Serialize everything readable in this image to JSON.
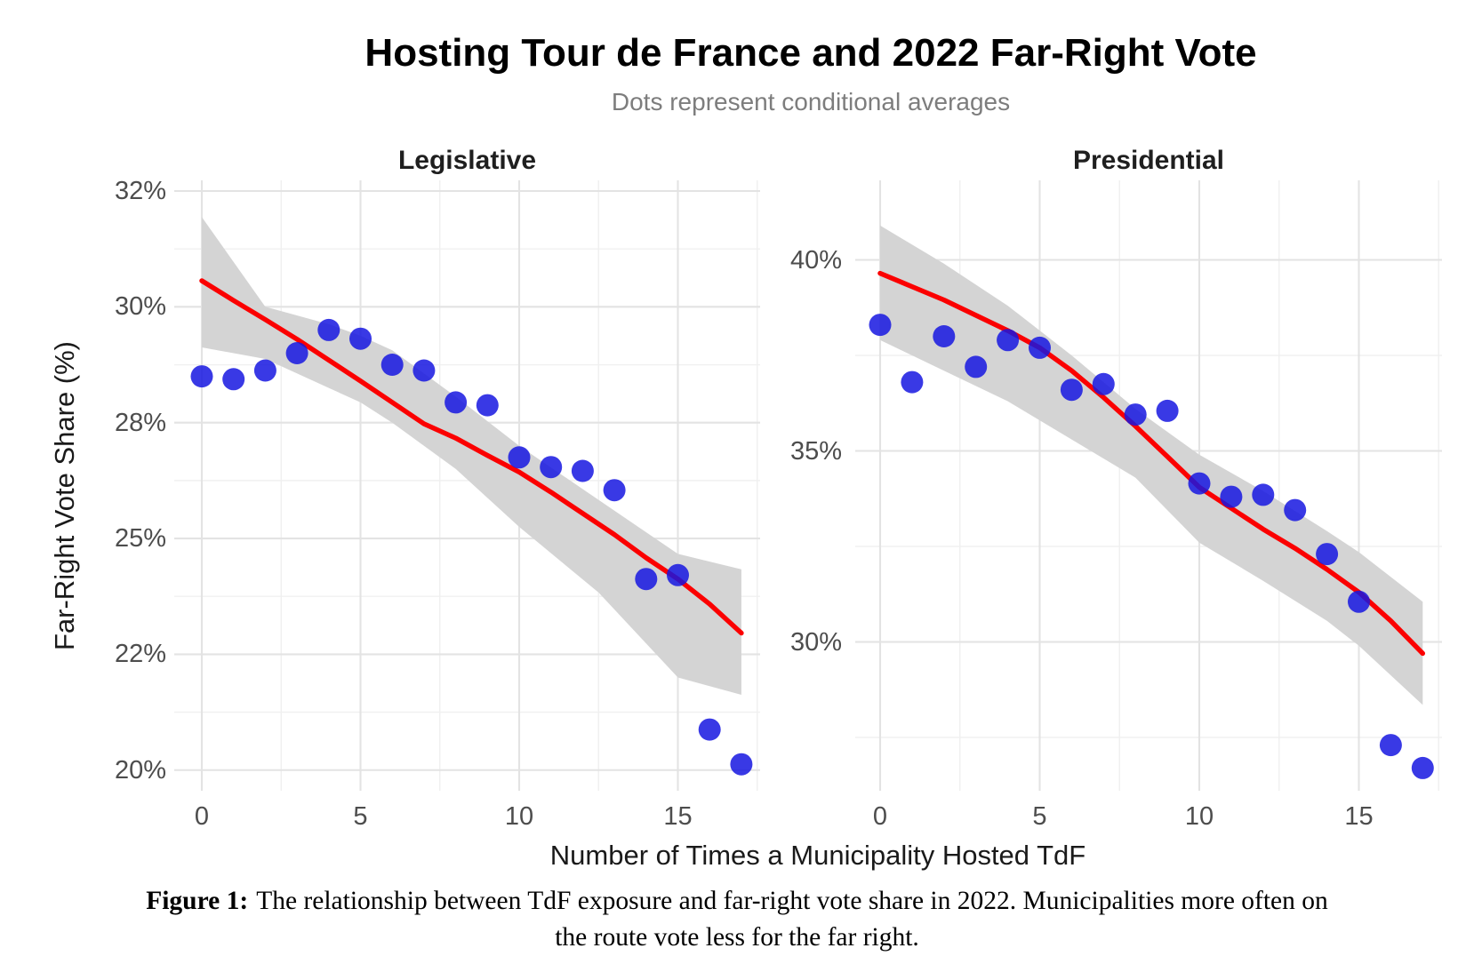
{
  "title": "Hosting Tour de France and 2022 Far-Right Vote",
  "subtitle": "Dots represent conditional averages",
  "x_axis_title": "Number of Times a Municipality Hosted TdF",
  "y_axis_title": "Far-Right Vote Share (%)",
  "caption": {
    "label": "Figure 1:",
    "line1": "The relationship between TdF exposure and far-right vote share in 2022. Municipalities more often on",
    "line2": "the route vote less for the far right."
  },
  "style": {
    "dot_color": "#1616e0",
    "dot_opacity": 0.85,
    "line_color": "#fb0000",
    "band_color": "#d4d4d4",
    "grid_major": "#e3e3e3",
    "grid_minor": "#f0f0f0",
    "tick_text_color": "#4d4d4d",
    "axis_title_color": "#1a1a1a",
    "subtitle_color": "#7d7d7d",
    "strip_color": "#1f1f1f"
  },
  "chart_data": [
    {
      "type": "scatter",
      "panel": "Legislative",
      "dots_meaning": "conditional averages",
      "x": [
        0,
        1,
        2,
        3,
        4,
        5,
        6,
        7,
        8,
        9,
        10,
        11,
        12,
        13,
        14,
        15,
        16,
        17
      ],
      "y_percent": [
        28.8,
        28.75,
        28.9,
        29.2,
        29.6,
        29.45,
        29.0,
        28.9,
        28.35,
        28.3,
        27.1,
        26.85,
        26.75,
        26.25,
        23.95,
        24.05,
        20.7,
        20.1
      ],
      "x_axis": {
        "breaks": [
          0,
          5,
          10,
          15
        ],
        "labels": [
          "0",
          "5",
          "10",
          "15"
        ],
        "minor_breaks": [
          2.5,
          7.5,
          12.5,
          17.5
        ]
      },
      "y_axis": {
        "breaks": [
          32,
          30,
          28,
          25,
          22,
          20
        ],
        "labels": [
          "32%",
          "30%",
          "28%",
          "25%",
          "22%",
          "20%"
        ],
        "scale": "equal-spaced-breaks"
      },
      "smooth_line": [
        [
          0,
          30.45
        ],
        [
          1,
          30.11
        ],
        [
          2,
          29.78
        ],
        [
          3,
          29.44
        ],
        [
          4,
          29.08
        ],
        [
          5,
          28.72
        ],
        [
          6,
          28.35
        ],
        [
          7,
          27.97
        ],
        [
          8,
          27.6
        ],
        [
          9,
          27.15
        ],
        [
          10,
          26.72
        ],
        [
          11,
          26.2
        ],
        [
          12,
          25.65
        ],
        [
          13,
          25.1
        ],
        [
          14,
          24.5
        ],
        [
          15,
          23.95
        ],
        [
          16,
          23.3
        ],
        [
          17,
          22.55
        ]
      ],
      "confidence_band": [
        [
          0,
          31.55,
          29.3
        ],
        [
          2,
          30.0,
          29.1
        ],
        [
          4,
          29.7,
          28.6
        ],
        [
          5,
          29.5,
          28.35
        ],
        [
          6,
          29.25,
          28.0
        ],
        [
          8,
          28.45,
          26.8
        ],
        [
          10,
          27.4,
          25.3
        ],
        [
          12.5,
          26.0,
          23.6
        ],
        [
          15,
          24.6,
          21.6
        ],
        [
          17,
          24.2,
          21.3
        ]
      ]
    },
    {
      "type": "scatter",
      "panel": "Presidential",
      "dots_meaning": "conditional averages",
      "x": [
        0,
        1,
        2,
        3,
        4,
        5,
        6,
        7,
        8,
        9,
        10,
        11,
        12,
        13,
        14,
        15,
        16,
        17
      ],
      "y_percent": [
        38.3,
        36.8,
        38.0,
        37.2,
        37.9,
        37.7,
        36.6,
        36.75,
        35.95,
        36.05,
        34.15,
        33.8,
        33.85,
        33.45,
        32.3,
        31.05,
        27.3,
        26.7
      ],
      "x_axis": {
        "breaks": [
          0,
          5,
          10,
          15
        ],
        "labels": [
          "0",
          "5",
          "10",
          "15"
        ],
        "minor_breaks": [
          2.5,
          7.5,
          12.5,
          17.5
        ]
      },
      "y_axis": {
        "breaks": [
          40,
          35,
          30
        ],
        "labels": [
          "40%",
          "35%",
          "30%"
        ],
        "scale": "linear"
      },
      "smooth_line": [
        [
          0,
          39.65
        ],
        [
          1,
          39.3
        ],
        [
          2,
          38.95
        ],
        [
          3,
          38.55
        ],
        [
          4,
          38.15
        ],
        [
          5,
          37.7
        ],
        [
          6,
          37.1
        ],
        [
          7,
          36.4
        ],
        [
          8,
          35.65
        ],
        [
          9,
          34.85
        ],
        [
          10,
          34.05
        ],
        [
          11,
          33.5
        ],
        [
          12,
          32.95
        ],
        [
          13,
          32.45
        ],
        [
          14,
          31.9
        ],
        [
          15,
          31.3
        ],
        [
          16,
          30.55
        ],
        [
          17,
          29.7
        ]
      ],
      "confidence_band": [
        [
          0,
          40.9,
          37.9
        ],
        [
          2,
          39.9,
          37.1
        ],
        [
          4,
          38.8,
          36.3
        ],
        [
          6,
          37.5,
          35.3
        ],
        [
          8,
          36.1,
          34.3
        ],
        [
          10,
          34.9,
          32.6
        ],
        [
          12,
          33.95,
          31.6
        ],
        [
          14,
          32.9,
          30.55
        ],
        [
          15,
          32.35,
          29.9
        ],
        [
          17,
          31.05,
          28.35
        ]
      ]
    }
  ]
}
